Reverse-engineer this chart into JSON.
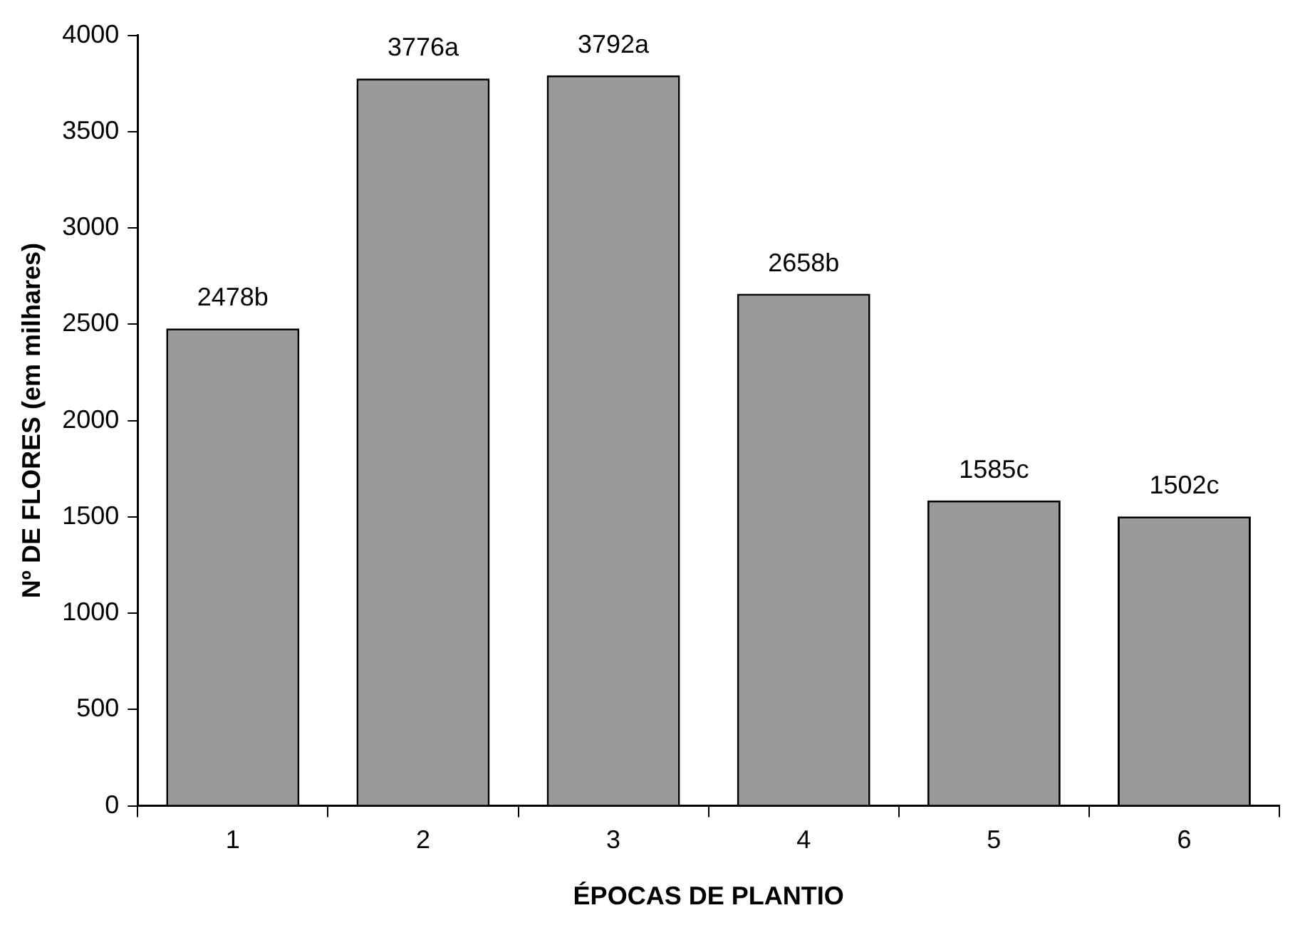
{
  "chart_data": {
    "type": "bar",
    "xlabel": "ÉPOCAS DE PLANTIO",
    "ylabel": "Nº DE FLORES (em milhares)",
    "categories": [
      "1",
      "2",
      "3",
      "4",
      "5",
      "6"
    ],
    "values": [
      2478,
      3776,
      3792,
      2658,
      1585,
      1502
    ],
    "value_labels": [
      "2478b",
      "3776a",
      "3792a",
      "2658b",
      "1585c",
      "1502c"
    ],
    "color": "#9a9a9a",
    "ylim": [
      0,
      4000
    ],
    "yticks": [
      0,
      500,
      1000,
      1500,
      2000,
      2500,
      3000,
      3500,
      4000
    ],
    "grid": false
  }
}
